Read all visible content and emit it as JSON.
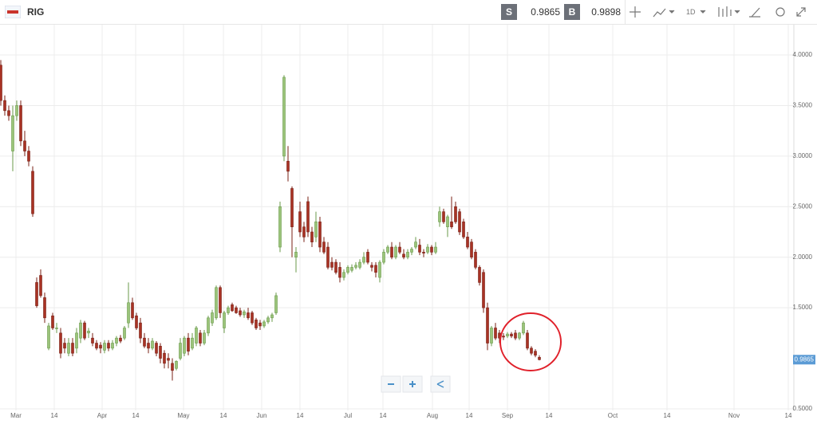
{
  "header": {
    "symbol": "RIG",
    "sell_label": "S",
    "sell": 0.9865,
    "buy_label": "B",
    "buy": 0.9898,
    "timeframe": "1D"
  },
  "chart_data": {
    "type": "candlestick",
    "up_color": "#9bc47a",
    "down_color": "#a83224",
    "grid": true,
    "xlim": [
      -0.2,
      198.8
    ],
    "xticks": [
      {
        "value": 3.8,
        "label": "Mar"
      },
      {
        "value": 13.4,
        "label": "14"
      },
      {
        "value": 25.4,
        "label": "Apr"
      },
      {
        "value": 33.8,
        "label": "14"
      },
      {
        "value": 45.8,
        "label": "May"
      },
      {
        "value": 55.8,
        "label": "14"
      },
      {
        "value": 65.4,
        "label": "Jun"
      },
      {
        "value": 75,
        "label": "14"
      },
      {
        "value": 87,
        "label": "Jul"
      },
      {
        "value": 95.8,
        "label": "14"
      },
      {
        "value": 108.2,
        "label": "Aug"
      },
      {
        "value": 117.4,
        "label": "14"
      },
      {
        "value": 127,
        "label": "Sep"
      },
      {
        "value": 137.4,
        "label": "14"
      },
      {
        "value": 153.4,
        "label": "Oct"
      },
      {
        "value": 167,
        "label": "14"
      },
      {
        "value": 183.8,
        "label": "Nov"
      },
      {
        "value": 197.4,
        "label": "14"
      }
    ],
    "ylim": [
      0.484,
      4.3
    ],
    "yticks": [
      {
        "value": 0.5,
        "label": "0.5000"
      },
      {
        "value": 1.5,
        "label": "1.5000"
      },
      {
        "value": 2,
        "label": "2.0000"
      },
      {
        "value": 2.5,
        "label": "2.5000"
      },
      {
        "value": 3,
        "label": "3.0000"
      },
      {
        "value": 3.5,
        "label": "3.5000"
      },
      {
        "value": 4,
        "label": "4.0000"
      }
    ],
    "last_price": 0.9865,
    "open": [
      3.9,
      3.55,
      3.45,
      3.05,
      3.4,
      3.5,
      3.15,
      3.05,
      2.85,
      1.75,
      1.82,
      1.6,
      1.1,
      1.42,
      1.3,
      1.25,
      1.15,
      1.05,
      1.15,
      1.1,
      1.2,
      1.35,
      1.25,
      1.2,
      1.15,
      1.13,
      1.08,
      1.15,
      1.1,
      1.15,
      1.2,
      1.2,
      1.35,
      1.55,
      1.42,
      1.35,
      1.2,
      1.15,
      1.1,
      1.15,
      1.12,
      1.05,
      1.0,
      0.95,
      0.9,
      1.0,
      1.05,
      1.2,
      1.1,
      1.15,
      1.25,
      1.15,
      1.25,
      1.35,
      1.4,
      1.7,
      1.3,
      1.45,
      1.53,
      1.5,
      1.47,
      1.43,
      1.45,
      1.45,
      1.38,
      1.35,
      1.32,
      1.36,
      1.4,
      1.45,
      2.1,
      3.0,
      2.95,
      2.68,
      2.0,
      2.45,
      2.3,
      2.55,
      2.25,
      2.2,
      2.35,
      2.15,
      2.1,
      1.95,
      1.95,
      1.9,
      1.8,
      1.85,
      1.87,
      1.9,
      1.9,
      1.95,
      2.05,
      1.92,
      1.92,
      1.8,
      1.95,
      2.05,
      2.1,
      2.0,
      2.1,
      2.03,
      2.0,
      2.05,
      2.1,
      2.12,
      2.05,
      2.05,
      2.1,
      2.05,
      2.35,
      2.45,
      2.3,
      2.35,
      2.5,
      2.45,
      2.35,
      2.2,
      2.15,
      2.05,
      1.9,
      1.85,
      1.5,
      1.15,
      1.3,
      1.25,
      1.22,
      1.22,
      1.24,
      1.25,
      1.2,
      1.25,
      1.25,
      1.1,
      1.07,
      1.01
    ],
    "high": [
      3.95,
      3.6,
      3.5,
      3.5,
      3.55,
      3.55,
      3.25,
      3.1,
      2.9,
      1.8,
      1.88,
      1.65,
      1.35,
      1.45,
      1.35,
      1.3,
      1.2,
      1.2,
      1.2,
      1.3,
      1.38,
      1.37,
      1.3,
      1.25,
      1.18,
      1.16,
      1.18,
      1.18,
      1.18,
      1.22,
      1.23,
      1.32,
      1.75,
      1.6,
      1.45,
      1.4,
      1.25,
      1.2,
      1.2,
      1.17,
      1.15,
      1.08,
      1.05,
      1.0,
      0.98,
      1.2,
      1.22,
      1.25,
      1.25,
      1.32,
      1.28,
      1.28,
      1.42,
      1.48,
      1.72,
      1.72,
      1.47,
      1.52,
      1.55,
      1.52,
      1.5,
      1.48,
      1.5,
      1.47,
      1.4,
      1.38,
      1.38,
      1.42,
      1.45,
      1.65,
      2.55,
      3.8,
      3.1,
      2.7,
      2.1,
      2.55,
      2.35,
      2.6,
      2.3,
      2.45,
      2.4,
      2.2,
      2.15,
      2.0,
      1.98,
      1.95,
      1.88,
      1.92,
      1.93,
      1.95,
      1.98,
      2.05,
      2.08,
      1.95,
      1.95,
      1.97,
      2.08,
      2.12,
      2.15,
      2.12,
      2.15,
      2.08,
      2.08,
      2.1,
      2.2,
      2.18,
      2.08,
      2.13,
      2.12,
      2.15,
      2.5,
      2.48,
      2.42,
      2.6,
      2.55,
      2.48,
      2.38,
      2.25,
      2.18,
      2.08,
      1.92,
      1.88,
      1.55,
      1.32,
      1.35,
      1.28,
      1.25,
      1.26,
      1.26,
      1.28,
      1.26,
      1.37,
      1.28,
      1.12,
      1.09,
      1.03
    ],
    "low": [
      3.5,
      3.4,
      3.35,
      2.85,
      3.35,
      3.1,
      3.0,
      2.9,
      2.4,
      1.5,
      1.6,
      1.35,
      1.08,
      1.28,
      1.25,
      1.0,
      1.05,
      1.02,
      1.02,
      1.05,
      1.15,
      1.18,
      1.2,
      1.12,
      1.08,
      1.05,
      1.05,
      1.07,
      1.08,
      1.12,
      1.15,
      1.18,
      1.3,
      1.38,
      1.28,
      1.15,
      1.1,
      1.05,
      1.08,
      1.02,
      0.95,
      0.9,
      0.9,
      0.78,
      0.88,
      0.98,
      1.02,
      1.03,
      1.08,
      1.12,
      1.12,
      1.13,
      1.22,
      1.32,
      1.38,
      1.4,
      1.25,
      1.43,
      1.46,
      1.44,
      1.41,
      1.4,
      1.38,
      1.33,
      1.28,
      1.28,
      1.3,
      1.34,
      1.36,
      1.43,
      2.05,
      2.95,
      2.75,
      2.0,
      1.85,
      2.2,
      2.15,
      2.2,
      2.1,
      2.15,
      2.05,
      2.03,
      1.88,
      1.87,
      1.83,
      1.75,
      1.77,
      1.83,
      1.85,
      1.88,
      1.88,
      1.93,
      1.93,
      1.86,
      1.8,
      1.75,
      1.93,
      2.03,
      1.98,
      1.98,
      2.03,
      1.98,
      1.98,
      2.02,
      2.08,
      2.02,
      2.0,
      2.03,
      2.02,
      2.03,
      2.3,
      2.33,
      2.2,
      2.28,
      2.33,
      2.22,
      2.18,
      2.08,
      1.98,
      1.88,
      1.72,
      1.45,
      1.08,
      1.12,
      1.18,
      1.15,
      1.18,
      1.2,
      1.2,
      1.18,
      1.18,
      1.23,
      1.08,
      1.03,
      1.01,
      0.98
    ],
    "close": [
      3.55,
      3.45,
      3.4,
      3.4,
      3.5,
      3.15,
      3.05,
      2.95,
      2.43,
      1.52,
      1.62,
      1.4,
      1.32,
      1.3,
      1.3,
      1.05,
      1.1,
      1.15,
      1.05,
      1.25,
      1.35,
      1.2,
      1.27,
      1.15,
      1.1,
      1.1,
      1.15,
      1.1,
      1.15,
      1.2,
      1.17,
      1.3,
      1.55,
      1.4,
      1.3,
      1.2,
      1.12,
      1.1,
      1.17,
      1.05,
      1.0,
      0.95,
      0.98,
      0.88,
      0.97,
      1.15,
      1.2,
      1.07,
      1.2,
      1.3,
      1.15,
      1.25,
      1.4,
      1.45,
      1.7,
      1.45,
      1.45,
      1.5,
      1.47,
      1.45,
      1.43,
      1.46,
      1.4,
      1.35,
      1.3,
      1.32,
      1.36,
      1.4,
      1.43,
      1.62,
      2.5,
      3.78,
      2.85,
      2.3,
      2.05,
      2.25,
      2.2,
      2.25,
      2.15,
      2.35,
      2.1,
      2.05,
      1.9,
      1.9,
      1.85,
      1.8,
      1.85,
      1.9,
      1.9,
      1.92,
      1.95,
      2.0,
      1.95,
      1.9,
      1.85,
      1.95,
      2.05,
      2.1,
      2.0,
      2.1,
      2.05,
      2.0,
      2.05,
      2.08,
      2.15,
      2.05,
      2.04,
      2.1,
      2.05,
      2.1,
      2.45,
      2.35,
      2.4,
      2.3,
      2.35,
      2.25,
      2.2,
      2.1,
      2.0,
      1.9,
      1.75,
      1.5,
      1.15,
      1.3,
      1.2,
      1.2,
      1.21,
      1.24,
      1.22,
      1.2,
      1.25,
      1.35,
      1.1,
      1.05,
      1.03,
      0.9865
    ]
  }
}
